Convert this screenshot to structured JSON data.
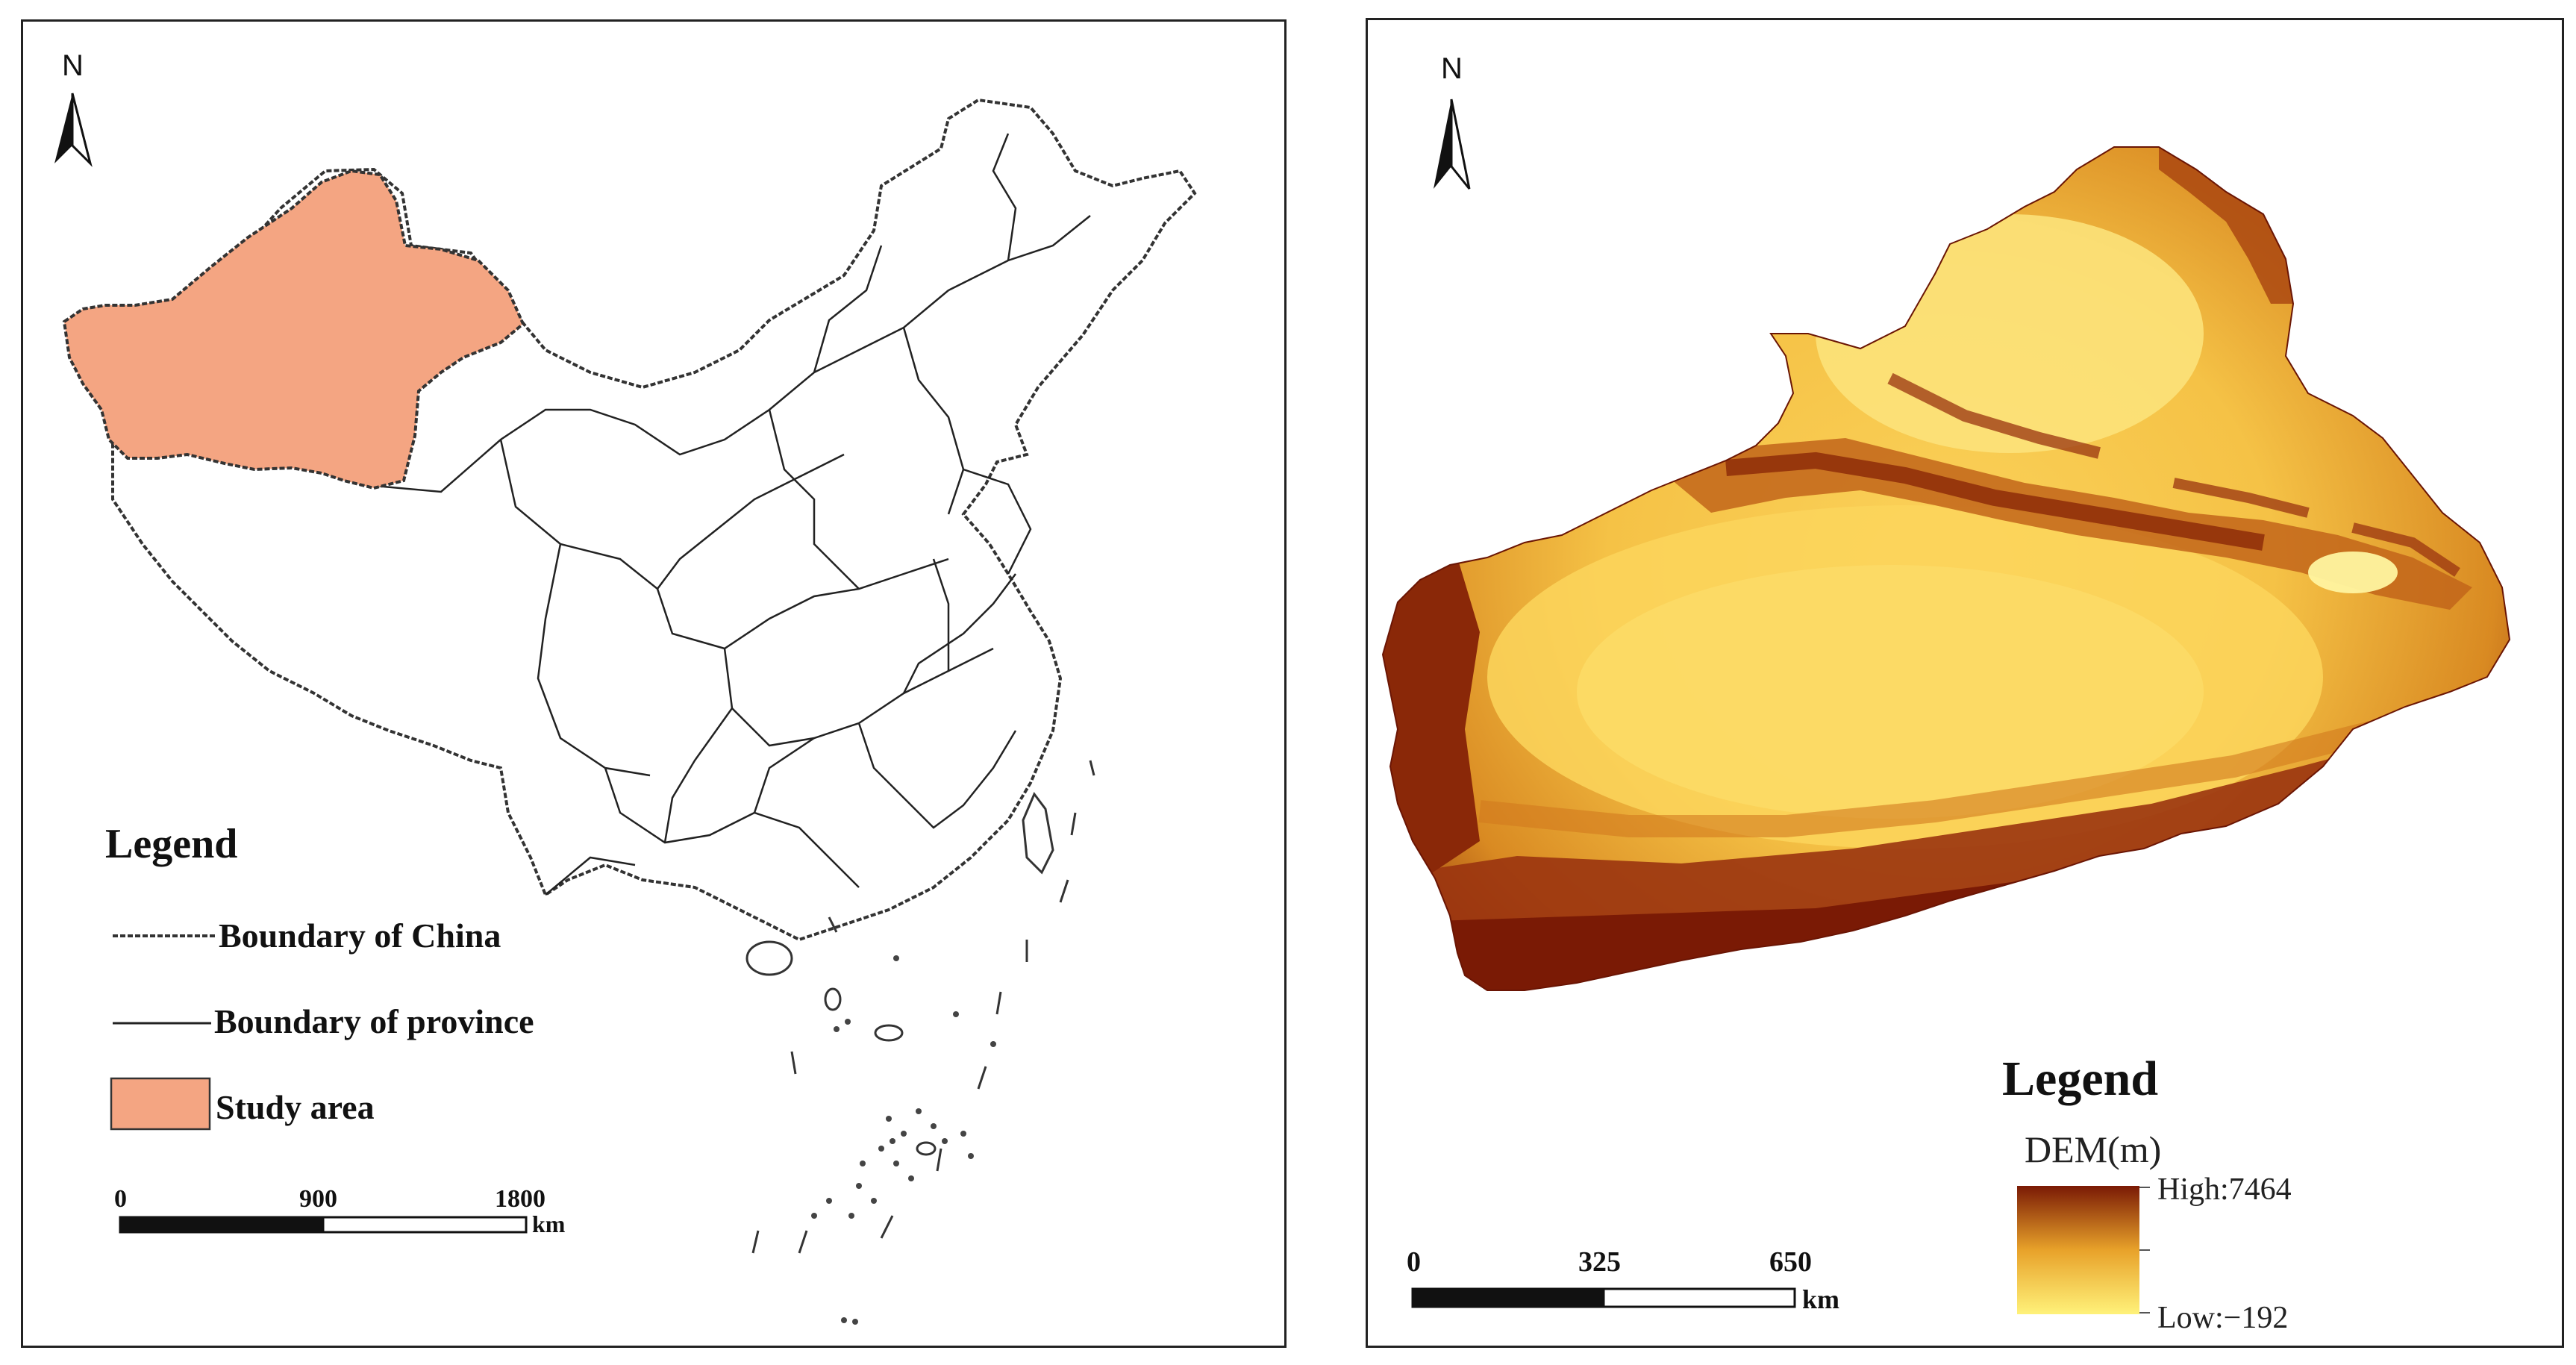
{
  "left_map": {
    "north_label": "N",
    "legend": {
      "title": "Legend",
      "items": [
        {
          "symbol": "dashed-line",
          "label": "Boundary of China"
        },
        {
          "symbol": "solid-line",
          "label": "Boundary of province"
        },
        {
          "symbol": "filled-box",
          "label": "Study area"
        }
      ]
    },
    "scale": {
      "ticks": [
        "0",
        "900",
        "1800"
      ],
      "unit": "km"
    },
    "colors": {
      "study_area": "#F4A582",
      "outline": "#222222"
    }
  },
  "right_map": {
    "north_label": "N",
    "legend": {
      "title": "Legend",
      "dem_label": "DEM(m)",
      "high_label": "High:7464",
      "low_label": "Low:−192"
    },
    "scale": {
      "ticks": [
        "0",
        "325",
        "650"
      ],
      "unit": "km"
    },
    "colors": {
      "dem_high": "#7A1A05",
      "dem_mid": "#E8A22A",
      "dem_low": "#FFF27A"
    }
  }
}
